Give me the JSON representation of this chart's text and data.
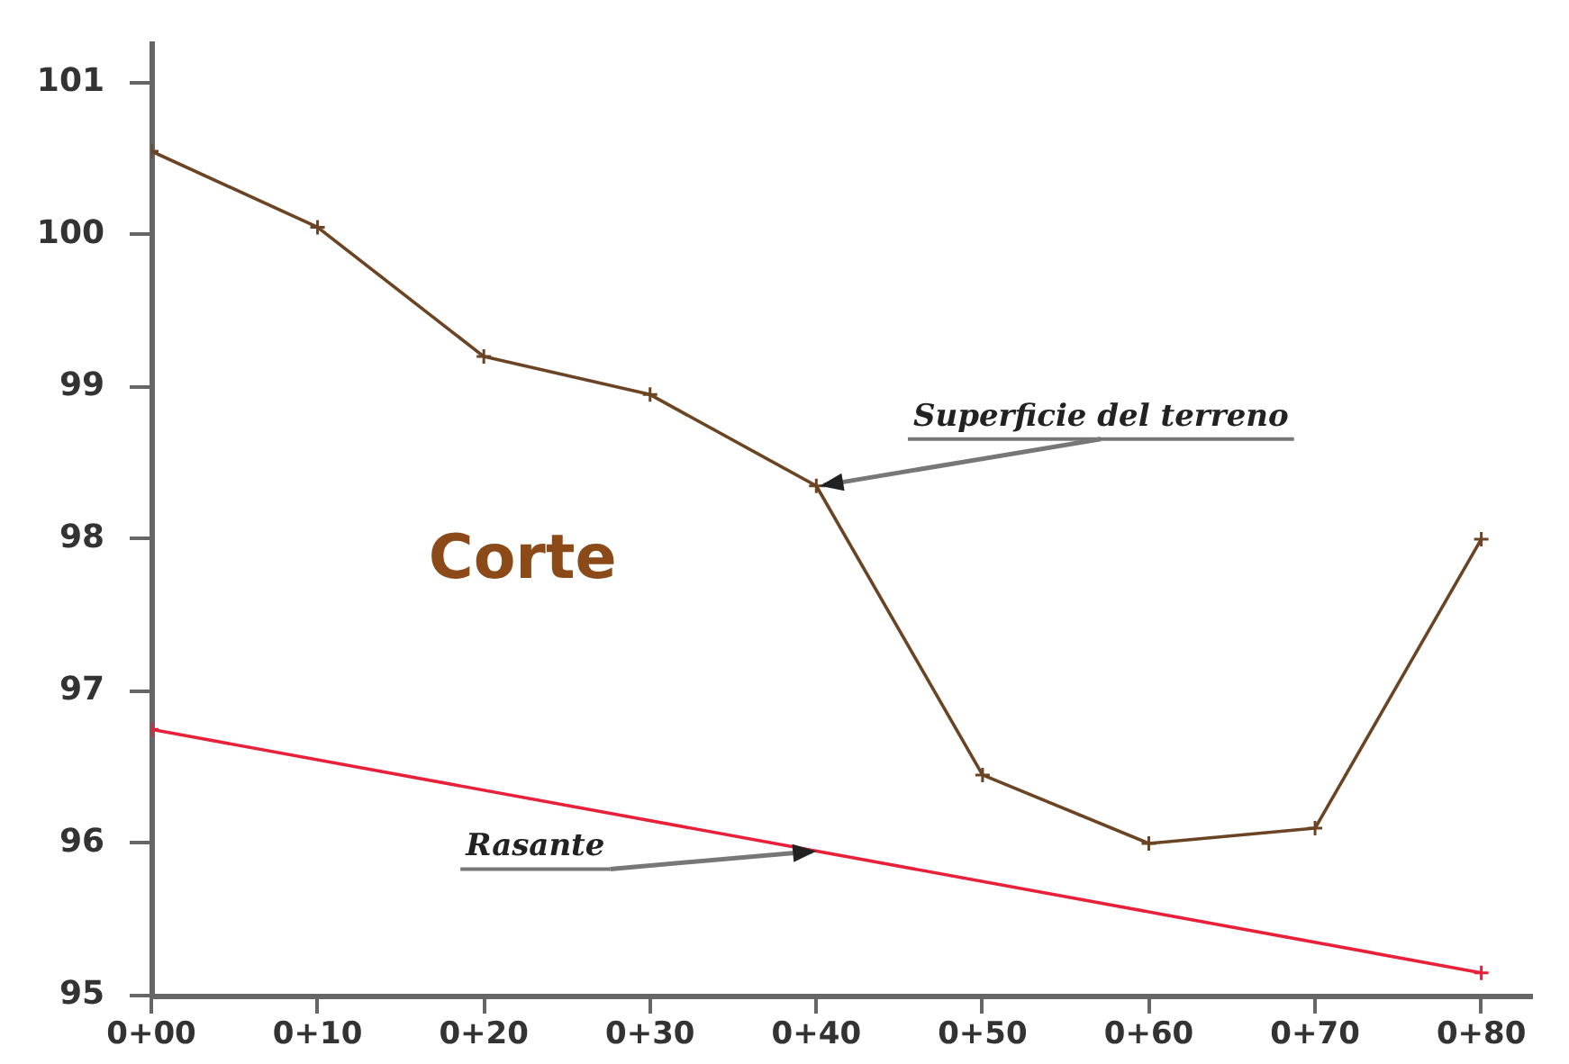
{
  "chart_data": {
    "type": "line",
    "categories": [
      "0+00",
      "0+10",
      "0+20",
      "0+30",
      "0+40",
      "0+50",
      "0+60",
      "0+70",
      "0+80"
    ],
    "ylim": [
      95,
      101.25
    ],
    "yticks": [
      95,
      96,
      97,
      98,
      99,
      100,
      101
    ],
    "grid": false,
    "legend": false,
    "marker": "cross",
    "line_style": "solid",
    "series": [
      {
        "color": "#6b4423",
        "values": [
          100.55,
          100.05,
          99.2,
          98.95,
          98.35,
          96.45,
          96.0,
          96.1,
          98.0
        ]
      },
      {
        "color": "#e8203a",
        "x": [
          "0+00",
          "0+80"
        ],
        "values": [
          96.75,
          95.15
        ]
      }
    ],
    "annotations": [
      "Corte",
      {
        "text": "Superficie del terreno",
        "x": "0+40",
        "y": 98.35
      },
      {
        "text": "Rasante",
        "x": "0+40",
        "y": 95.95
      }
    ]
  }
}
